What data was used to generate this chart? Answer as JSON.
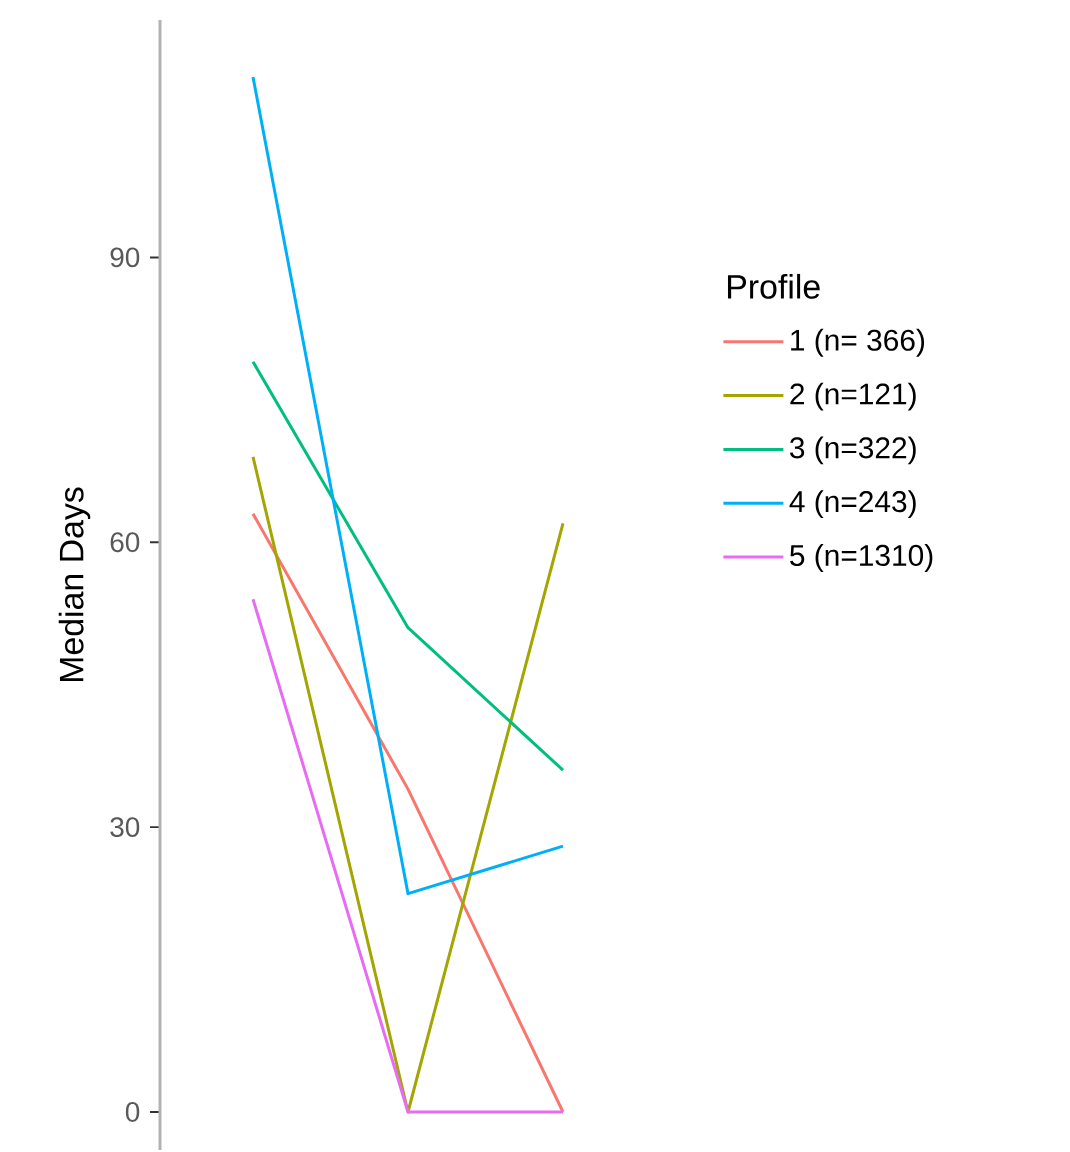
{
  "chart_data": {
    "type": "line",
    "ylabel": "Median Days",
    "legend_title": "Profile",
    "categories": [
      null,
      null,
      null
    ],
    "series": [
      {
        "name": "1 (n= 366)",
        "color": "#F8766D",
        "values": [
          63,
          34,
          0
        ]
      },
      {
        "name": "2 (n=121)",
        "color": "#A3A500",
        "values": [
          69,
          0,
          62
        ]
      },
      {
        "name": "3 (n=322)",
        "color": "#00BF7D",
        "values": [
          79,
          51,
          36
        ]
      },
      {
        "name": "4 (n=243)",
        "color": "#00B0F6",
        "values": [
          109,
          23,
          28
        ]
      },
      {
        "name": "5 (n=1310)",
        "color": "#E76BF3",
        "values": [
          54,
          0,
          0
        ]
      }
    ],
    "ylim": [
      -4,
      115
    ],
    "yticks": [
      0,
      30,
      60,
      90
    ],
    "grid": false,
    "legend": "right",
    "marker": "none",
    "line_style": "solid"
  }
}
